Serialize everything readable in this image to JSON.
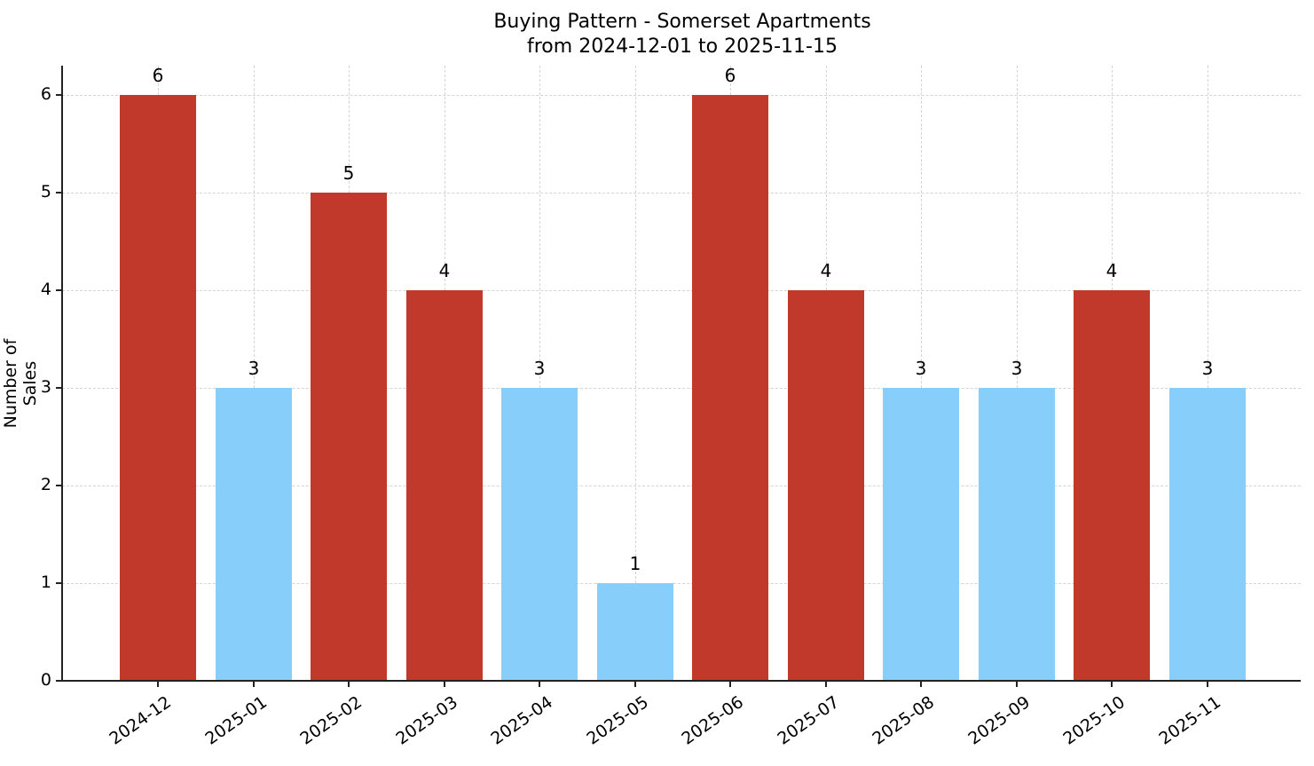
{
  "chart_data": {
    "type": "bar",
    "title": "Buying Pattern - Somerset Apartments",
    "subtitle": "from 2024-12-01 to 2025-11-15",
    "xlabel": "",
    "ylabel": "Number of Sales",
    "ylim": [
      0,
      6.3
    ],
    "yticks": [
      0,
      1,
      2,
      3,
      4,
      5,
      6
    ],
    "grid": true,
    "legend": null,
    "categories": [
      "2024-12",
      "2025-01",
      "2025-02",
      "2025-03",
      "2025-04",
      "2025-05",
      "2025-06",
      "2025-07",
      "2025-08",
      "2025-09",
      "2025-10",
      "2025-11"
    ],
    "values": [
      6,
      3,
      5,
      4,
      3,
      1,
      6,
      4,
      3,
      3,
      4,
      3
    ],
    "bar_colors": [
      "#c0392b",
      "#87cefa",
      "#c0392b",
      "#c0392b",
      "#87cefa",
      "#87cefa",
      "#c0392b",
      "#c0392b",
      "#87cefa",
      "#87cefa",
      "#c0392b",
      "#87cefa"
    ],
    "colors": {
      "high": "#c0392b",
      "low": "#87cefa"
    }
  }
}
